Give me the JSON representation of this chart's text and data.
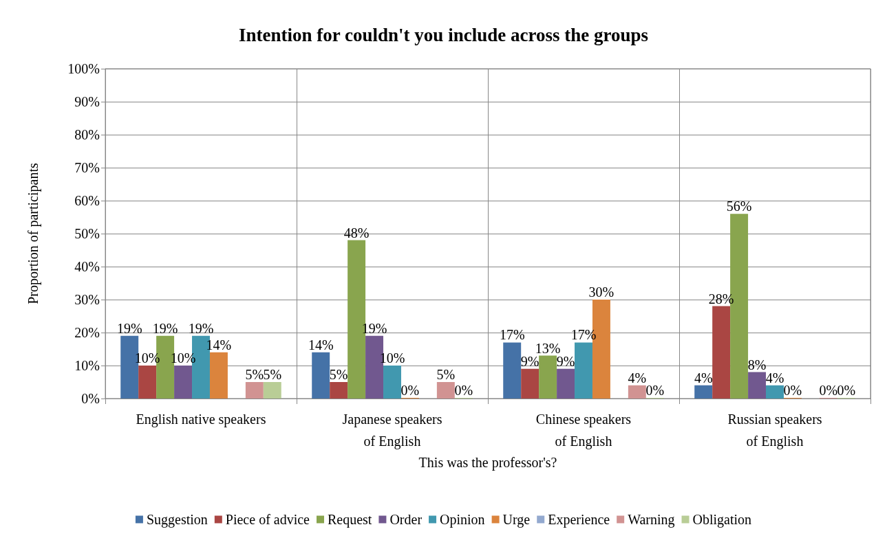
{
  "chart_data": {
    "type": "bar",
    "title": "Intention for couldn't you include across the groups",
    "xlabel": "This was the professor's?",
    "ylabel": "Proportion of participants",
    "categories": [
      "English native speakers",
      "Japanese speakers of English",
      "Chinese speakers of English",
      "Russian speakers of English"
    ],
    "series": [
      {
        "name": "Suggestion",
        "color": "#4572a7",
        "values": [
          19,
          14,
          17,
          4
        ],
        "value_labels": [
          "19%",
          "14%",
          "17%",
          "4%"
        ]
      },
      {
        "name": "Piece of advice",
        "color": "#aa4643",
        "values": [
          10,
          5,
          9,
          28
        ],
        "value_labels": [
          "10%",
          "5%",
          "9%",
          "28%"
        ]
      },
      {
        "name": "Request",
        "color": "#89a54e",
        "values": [
          19,
          48,
          13,
          56
        ],
        "value_labels": [
          "19%",
          "48%",
          "13%",
          "56%"
        ]
      },
      {
        "name": "Order",
        "color": "#71588f",
        "values": [
          10,
          19,
          9,
          8
        ],
        "value_labels": [
          "10%",
          "19%",
          "9%",
          "8%"
        ]
      },
      {
        "name": "Opinion",
        "color": "#4198af",
        "values": [
          19,
          10,
          17,
          4
        ],
        "value_labels": [
          "19%",
          "10%",
          "17%",
          "4%"
        ]
      },
      {
        "name": "Urge",
        "color": "#db843d",
        "values": [
          14,
          0,
          30,
          0
        ],
        "value_labels": [
          "14%",
          "0%",
          "30%",
          "0%"
        ]
      },
      {
        "name": "Experience",
        "color": "#93a9cf",
        "values": [
          null,
          null,
          null,
          null
        ],
        "value_labels": [
          null,
          null,
          null,
          null
        ]
      },
      {
        "name": "Warning",
        "color": "#d19392",
        "values": [
          5,
          5,
          4,
          0
        ],
        "value_labels": [
          "5%",
          "5%",
          "4%",
          "0%"
        ]
      },
      {
        "name": "Obligation",
        "color": "#b9cd96",
        "values": [
          5,
          0,
          0,
          0
        ],
        "value_labels": [
          "5%",
          "0%",
          "0%",
          "0%"
        ]
      }
    ],
    "ylim": [
      0,
      100
    ],
    "yticks": [
      {
        "value": 0,
        "label": "0%"
      },
      {
        "value": 10,
        "label": "10%"
      },
      {
        "value": 20,
        "label": "20%"
      },
      {
        "value": 30,
        "label": "30%"
      },
      {
        "value": 40,
        "label": "40%"
      },
      {
        "value": 50,
        "label": "50%"
      },
      {
        "value": 60,
        "label": "60%"
      },
      {
        "value": 70,
        "label": "70%"
      },
      {
        "value": 80,
        "label": "80%"
      },
      {
        "value": 90,
        "label": "90%"
      },
      {
        "value": 100,
        "label": "100%"
      }
    ],
    "grid": true,
    "legend": "bottom"
  }
}
